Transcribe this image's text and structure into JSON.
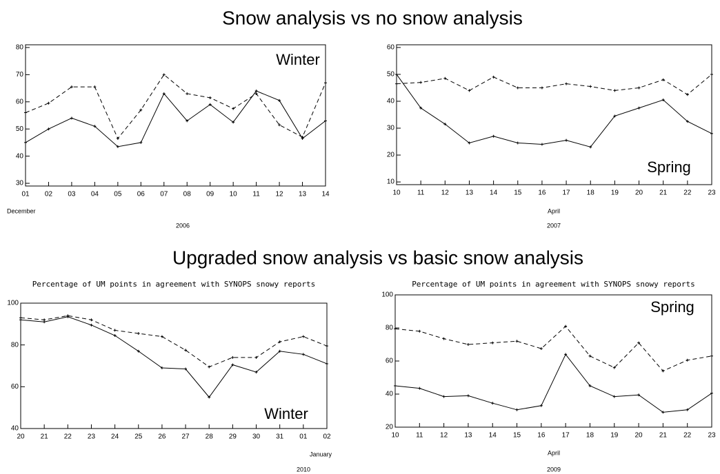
{
  "headings": [
    "Snow analysis vs no snow analysis",
    "Upgraded snow analysis vs basic snow analysis"
  ],
  "chart_data": [
    {
      "type": "line",
      "annotation": "Winter",
      "x_label": "December",
      "x_sublabel": "2006",
      "categories": [
        "01",
        "02",
        "03",
        "04",
        "05",
        "06",
        "07",
        "08",
        "09",
        "10",
        "11",
        "12",
        "13",
        "14"
      ],
      "ylim": [
        29,
        81
      ],
      "yticks": [
        30,
        40,
        50,
        60,
        70,
        80
      ],
      "series": [
        {
          "color": "#000000",
          "dashed": false,
          "values": [
            45,
            50,
            54,
            51,
            43.5,
            45,
            63,
            53,
            59,
            52.5,
            64,
            60.5,
            46.5,
            53
          ]
        },
        {
          "color": "#000000",
          "dashed": true,
          "values": [
            56,
            59.5,
            65.5,
            65.5,
            46.5,
            57,
            70,
            63,
            61.5,
            57.5,
            63,
            51.5,
            47,
            67
          ]
        }
      ]
    },
    {
      "type": "line",
      "annotation": "Spring",
      "x_label": "April",
      "x_sublabel": "2007",
      "categories": [
        "10",
        "11",
        "12",
        "13",
        "14",
        "15",
        "16",
        "17",
        "18",
        "19",
        "20",
        "21",
        "22",
        "23"
      ],
      "ylim": [
        9,
        61
      ],
      "yticks": [
        10,
        20,
        30,
        40,
        50,
        60
      ],
      "series": [
        {
          "color": "#000000",
          "dashed": false,
          "values": [
            50,
            37.5,
            31.5,
            24.5,
            27,
            24.5,
            24,
            25.5,
            23,
            34.5,
            37.5,
            40.5,
            32.5,
            28
          ]
        },
        {
          "color": "#000000",
          "dashed": true,
          "values": [
            46.5,
            47,
            48.5,
            44,
            49,
            45,
            45,
            46.5,
            45.5,
            44,
            45,
            48,
            42.5,
            50
          ]
        }
      ]
    },
    {
      "type": "line",
      "title": "Percentage of UM points in agreement with SYNOPS snowy reports",
      "annotation": "Winter",
      "x_label": "January",
      "x_sublabel": "2010",
      "categories": [
        "20",
        "21",
        "22",
        "23",
        "24",
        "25",
        "26",
        "27",
        "28",
        "29",
        "30",
        "31",
        "01",
        "02"
      ],
      "ylim": [
        40,
        100
      ],
      "yticks": [
        40,
        60,
        80,
        100
      ],
      "series": [
        {
          "color": "#000000",
          "dashed": false,
          "values": [
            92,
            91,
            93.5,
            89.5,
            84.5,
            77,
            69,
            68.5,
            55,
            70.5,
            67,
            77,
            75.5,
            71
          ]
        },
        {
          "color": "#000000",
          "dashed": true,
          "values": [
            93,
            92,
            94,
            92,
            87,
            85.5,
            84,
            77.5,
            69.5,
            74,
            74,
            81.5,
            84,
            79.5
          ]
        }
      ]
    },
    {
      "type": "line",
      "title": "Percentage of UM points in agreement with SYNOPS snowy reports",
      "annotation": "Spring",
      "x_label": "April",
      "x_sublabel": "2009",
      "categories": [
        "10",
        "11",
        "12",
        "13",
        "14",
        "15",
        "16",
        "17",
        "18",
        "19",
        "20",
        "21",
        "22",
        "23"
      ],
      "ylim": [
        20,
        100
      ],
      "yticks": [
        20,
        40,
        60,
        80,
        100
      ],
      "series": [
        {
          "color": "#000000",
          "dashed": false,
          "values": [
            45,
            43.5,
            38.5,
            39,
            34.5,
            30.5,
            33,
            64,
            45,
            38.5,
            39.5,
            29,
            30.5,
            40.5
          ]
        },
        {
          "color": "#000000",
          "dashed": true,
          "values": [
            79.5,
            78,
            73.5,
            70,
            71,
            72,
            67.5,
            81,
            63,
            56,
            71,
            54,
            60.5,
            63
          ]
        }
      ]
    }
  ]
}
